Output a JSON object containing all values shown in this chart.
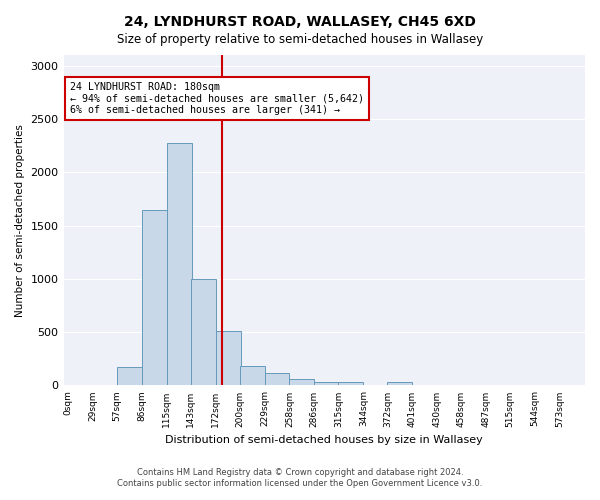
{
  "title1": "24, LYNDHURST ROAD, WALLASEY, CH45 6XD",
  "title2": "Size of property relative to semi-detached houses in Wallasey",
  "xlabel": "Distribution of semi-detached houses by size in Wallasey",
  "ylabel": "Number of semi-detached properties",
  "footnote1": "Contains HM Land Registry data © Crown copyright and database right 2024.",
  "footnote2": "Contains public sector information licensed under the Open Government Licence v3.0.",
  "annotation_line1": "24 LYNDHURST ROAD: 180sqm",
  "annotation_line2": "← 94% of semi-detached houses are smaller (5,642)",
  "annotation_line3": "6% of semi-detached houses are larger (341) →",
  "property_size": 180,
  "bar_color": "#c8d8e8",
  "bar_edge_color": "#6699bb",
  "vline_color": "#cc0000",
  "annotation_box_color": "#ffffff",
  "annotation_box_edge": "#cc0000",
  "background_color": "#eef2f8",
  "tick_labels": [
    "0sqm",
    "29sqm",
    "57sqm",
    "86sqm",
    "115sqm",
    "143sqm",
    "172sqm",
    "200sqm",
    "229sqm",
    "258sqm",
    "286sqm",
    "315sqm",
    "344sqm",
    "372sqm",
    "401sqm",
    "430sqm",
    "458sqm",
    "487sqm",
    "515sqm",
    "544sqm",
    "573sqm"
  ],
  "bin_edges": [
    0,
    29,
    57,
    86,
    115,
    143,
    172,
    200,
    229,
    258,
    286,
    315,
    344,
    372,
    401,
    430,
    458,
    487,
    515,
    544,
    573
  ],
  "bar_heights": [
    0,
    0,
    175,
    1650,
    2275,
    1000,
    510,
    185,
    115,
    60,
    35,
    35,
    0,
    35,
    0,
    0,
    0,
    0,
    0,
    0
  ],
  "ylim": [
    0,
    3100
  ],
  "yticks": [
    0,
    500,
    1000,
    1500,
    2000,
    2500,
    3000
  ]
}
